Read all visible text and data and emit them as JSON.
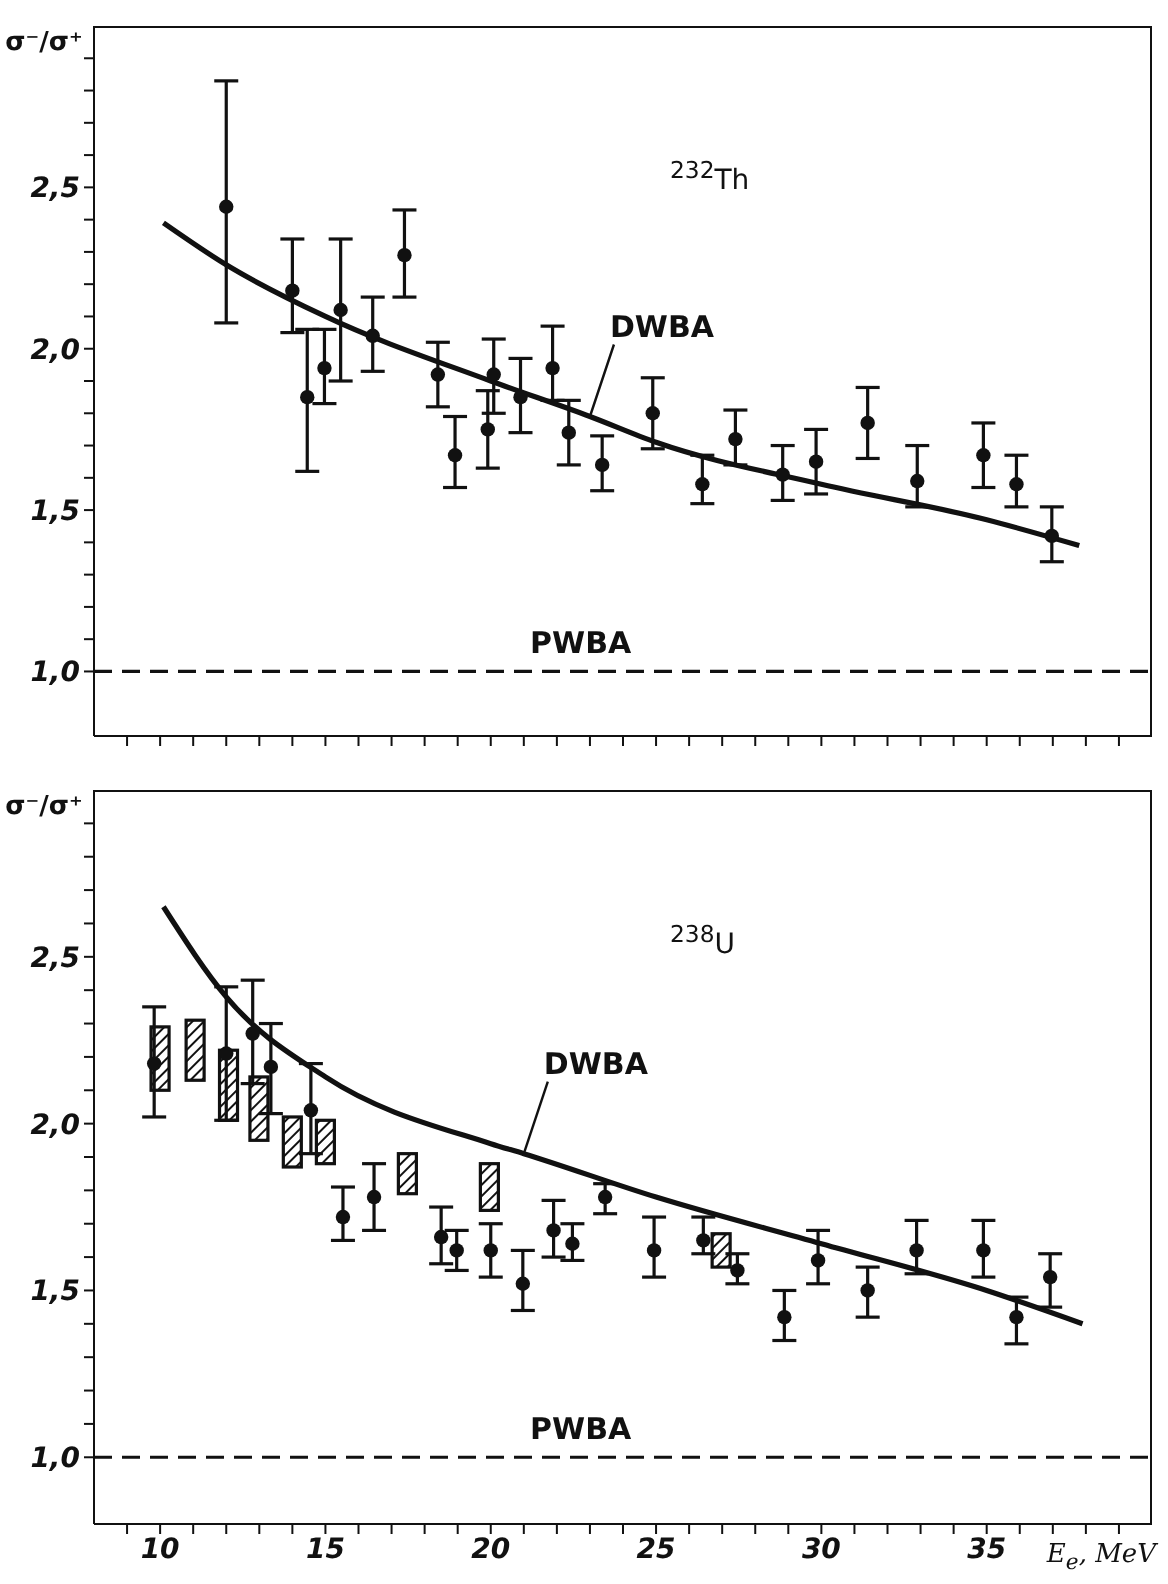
{
  "chart_data": [
    {
      "type": "scatter",
      "ylabel": "σ⁻/σ⁺",
      "annotations": [
        "$^{232}$Th"
      ],
      "xlim": [
        8,
        40
      ],
      "ylim": [
        0.8,
        3.0
      ],
      "tick_labels": "y",
      "grid": false,
      "xticks": [
        {
          "value": 9,
          "label": null
        },
        10,
        {
          "value": 11,
          "label": null
        },
        {
          "value": 12,
          "label": null
        },
        {
          "value": 13,
          "label": null
        },
        {
          "value": 14,
          "label": null
        },
        15,
        {
          "value": 16,
          "label": null
        },
        {
          "value": 17,
          "label": null
        },
        {
          "value": 18,
          "label": null
        },
        {
          "value": 19,
          "label": null
        },
        20,
        {
          "value": 21,
          "label": null
        },
        {
          "value": 22,
          "label": null
        },
        {
          "value": 23,
          "label": null
        },
        {
          "value": 24,
          "label": null
        },
        25,
        {
          "value": 26,
          "label": null
        },
        {
          "value": 27,
          "label": null
        },
        {
          "value": 28,
          "label": null
        },
        {
          "value": 29,
          "label": null
        },
        30,
        {
          "value": 31,
          "label": null
        },
        {
          "value": 32,
          "label": null
        },
        {
          "value": 33,
          "label": null
        },
        {
          "value": 34,
          "label": null
        },
        35,
        {
          "value": 36,
          "label": null
        },
        {
          "value": 37,
          "label": null
        },
        {
          "value": 38,
          "label": null
        },
        {
          "value": 39,
          "label": null
        }
      ],
      "yticks": [
        {
          "value": 1,
          "label": "1,0"
        },
        {
          "value": 1.1,
          "label": null
        },
        {
          "value": 1.2,
          "label": null
        },
        {
          "value": 1.3,
          "label": null
        },
        {
          "value": 1.4,
          "label": null
        },
        {
          "value": 1.5,
          "label": "1,5"
        },
        {
          "value": 1.6,
          "label": null
        },
        {
          "value": 1.7,
          "label": null
        },
        {
          "value": 1.8,
          "label": null
        },
        {
          "value": 1.9,
          "label": null
        },
        {
          "value": 2,
          "label": "2,0"
        },
        {
          "value": 2.1,
          "label": null
        },
        {
          "value": 2.2,
          "label": null
        },
        {
          "value": 2.3,
          "label": null
        },
        {
          "value": 2.4,
          "label": null
        },
        {
          "value": 2.5,
          "label": "2,5"
        },
        {
          "value": 2.6,
          "label": null
        },
        {
          "value": 2.7,
          "label": null
        },
        {
          "value": 2.8,
          "label": null
        },
        {
          "value": 2.9,
          "label": null
        }
      ],
      "ref_lines": [
        {
          "axis": "y",
          "value": 1,
          "label": "PWBA",
          "line_style": "dashed",
          "color": "#111111"
        }
      ],
      "series": [
        {
          "type": "line",
          "name": "DWBA",
          "color": "#111111",
          "line_style": "solid",
          "x": [
            10.1,
            12,
            15,
            20,
            23,
            25,
            30,
            35,
            37.8
          ],
          "values": [
            2.39,
            2.26,
            2.1,
            1.9,
            1.79,
            1.71,
            1.58,
            1.47,
            1.39
          ]
        },
        {
          "marker": "circle",
          "color": "#111111",
          "x": [
            12,
            14,
            14.45,
            14.97,
            15.46,
            16.43,
            17.39,
            18.4,
            18.92,
            19.91,
            20.09,
            20.9,
            21.87,
            22.36,
            23.37,
            24.9,
            26.4,
            27.4,
            28.83,
            29.84,
            31.4,
            32.9,
            34.9,
            35.9,
            36.97
          ],
          "values": [
            2.44,
            2.18,
            1.85,
            1.94,
            2.12,
            2.04,
            2.29,
            1.92,
            1.67,
            1.75,
            1.92,
            1.85,
            1.94,
            1.74,
            1.64,
            1.8,
            1.58,
            1.72,
            1.61,
            1.65,
            1.77,
            1.59,
            1.67,
            1.58,
            1.42
          ],
          "errors": [
            [
              2.08,
              2.83
            ],
            [
              2.05,
              2.34
            ],
            [
              1.62,
              2.06
            ],
            [
              1.83,
              2.06
            ],
            [
              1.9,
              2.34
            ],
            [
              1.93,
              2.16
            ],
            [
              2.16,
              2.43
            ],
            [
              1.82,
              2.02
            ],
            [
              1.57,
              1.79
            ],
            [
              1.63,
              1.87
            ],
            [
              1.8,
              2.03
            ],
            [
              1.74,
              1.97
            ],
            [
              1.84,
              2.07
            ],
            [
              1.64,
              1.84
            ],
            [
              1.56,
              1.73
            ],
            [
              1.69,
              1.91
            ],
            [
              1.52,
              1.67
            ],
            [
              1.64,
              1.81
            ],
            [
              1.53,
              1.7
            ],
            [
              1.55,
              1.75
            ],
            [
              1.66,
              1.88
            ],
            [
              1.51,
              1.7
            ],
            [
              1.57,
              1.77
            ],
            [
              1.51,
              1.67
            ],
            [
              1.34,
              1.51
            ]
          ]
        }
      ]
    },
    {
      "type": "scatter",
      "ylabel": "σ⁻/σ⁺",
      "xlabel": "E$_{e}$, MeV",
      "annotations": [
        "$^{238}$U"
      ],
      "xlim": [
        8,
        40
      ],
      "ylim": [
        0.8,
        3.0
      ],
      "grid": false,
      "xticks": [
        {
          "value": 9,
          "label": null
        },
        10,
        {
          "value": 11,
          "label": null
        },
        {
          "value": 12,
          "label": null
        },
        {
          "value": 13,
          "label": null
        },
        {
          "value": 14,
          "label": null
        },
        15,
        {
          "value": 16,
          "label": null
        },
        {
          "value": 17,
          "label": null
        },
        {
          "value": 18,
          "label": null
        },
        {
          "value": 19,
          "label": null
        },
        20,
        {
          "value": 21,
          "label": null
        },
        {
          "value": 22,
          "label": null
        },
        {
          "value": 23,
          "label": null
        },
        {
          "value": 24,
          "label": null
        },
        25,
        {
          "value": 26,
          "label": null
        },
        {
          "value": 27,
          "label": null
        },
        {
          "value": 28,
          "label": null
        },
        {
          "value": 29,
          "label": null
        },
        30,
        {
          "value": 31,
          "label": null
        },
        {
          "value": 32,
          "label": null
        },
        {
          "value": 33,
          "label": null
        },
        {
          "value": 34,
          "label": null
        },
        35,
        {
          "value": 36,
          "label": null
        },
        {
          "value": 37,
          "label": null
        },
        {
          "value": 38,
          "label": null
        },
        {
          "value": 39,
          "label": null
        }
      ],
      "yticks": [
        {
          "value": 1,
          "label": "1,0"
        },
        {
          "value": 1.1,
          "label": null
        },
        {
          "value": 1.2,
          "label": null
        },
        {
          "value": 1.3,
          "label": null
        },
        {
          "value": 1.4,
          "label": null
        },
        {
          "value": 1.5,
          "label": "1,5"
        },
        {
          "value": 1.6,
          "label": null
        },
        {
          "value": 1.7,
          "label": null
        },
        {
          "value": 1.8,
          "label": null
        },
        {
          "value": 1.9,
          "label": null
        },
        {
          "value": 2,
          "label": "2,0"
        },
        {
          "value": 2.1,
          "label": null
        },
        {
          "value": 2.2,
          "label": null
        },
        {
          "value": 2.3,
          "label": null
        },
        {
          "value": 2.4,
          "label": null
        },
        {
          "value": 2.5,
          "label": "2,5"
        },
        {
          "value": 2.6,
          "label": null
        },
        {
          "value": 2.7,
          "label": null
        },
        {
          "value": 2.8,
          "label": null
        },
        {
          "value": 2.9,
          "label": null
        }
      ],
      "ref_lines": [
        {
          "axis": "y",
          "value": 1,
          "label": "PWBA",
          "line_style": "dashed",
          "color": "#111111"
        }
      ],
      "series": [
        {
          "type": "line",
          "name": "DWBA",
          "color": "#111111",
          "line_style": "solid",
          "x": [
            10.1,
            12,
            15,
            20,
            21,
            25,
            30,
            35,
            37.9
          ],
          "values": [
            2.65,
            2.38,
            2.14,
            1.94,
            1.91,
            1.78,
            1.64,
            1.5,
            1.4
          ]
        },
        {
          "marker": "circle",
          "color": "#111111",
          "x": [
            9.82,
            12,
            12.8,
            13.35,
            14.56,
            15.53,
            16.47,
            18.5,
            18.97,
            20,
            20.97,
            21.9,
            22.47,
            23.46,
            24.94,
            26.43,
            27.46,
            28.88,
            29.9,
            31.4,
            32.88,
            34.9,
            35.9,
            36.92
          ],
          "values": [
            2.18,
            2.21,
            2.27,
            2.17,
            2.04,
            1.72,
            1.78,
            1.66,
            1.62,
            1.62,
            1.52,
            1.68,
            1.64,
            1.78,
            1.62,
            1.65,
            1.56,
            1.42,
            1.59,
            1.5,
            1.62,
            1.62,
            1.42,
            1.54
          ],
          "errors": [
            [
              2.02,
              2.35
            ],
            [
              2.01,
              2.41
            ],
            [
              2.12,
              2.43
            ],
            [
              2.03,
              2.3
            ],
            [
              1.91,
              2.18
            ],
            [
              1.65,
              1.81
            ],
            [
              1.68,
              1.88
            ],
            [
              1.58,
              1.75
            ],
            [
              1.56,
              1.68
            ],
            [
              1.54,
              1.7
            ],
            [
              1.44,
              1.62
            ],
            [
              1.6,
              1.77
            ],
            [
              1.59,
              1.7
            ],
            [
              1.73,
              1.82
            ],
            [
              1.54,
              1.72
            ],
            [
              1.61,
              1.72
            ],
            [
              1.52,
              1.61
            ],
            [
              1.35,
              1.5
            ],
            [
              1.52,
              1.68
            ],
            [
              1.42,
              1.57
            ],
            [
              1.55,
              1.71
            ],
            [
              1.54,
              1.71
            ],
            [
              1.34,
              1.48
            ],
            [
              1.45,
              1.61
            ]
          ]
        },
        {
          "type": "bar",
          "color": "#111111",
          "x": [
            10,
            11.06,
            12.07,
            12.99,
            14,
            15,
            17.48,
            19.96,
            26.97
          ],
          "values": [
            0.19,
            0.18,
            0.21,
            0.19,
            0.15,
            0.13,
            0.12,
            0.14,
            0.1
          ],
          "base": [
            2.1,
            2.13,
            2.01,
            1.95,
            1.87,
            1.88,
            1.79,
            1.74,
            1.57
          ]
        }
      ]
    }
  ]
}
